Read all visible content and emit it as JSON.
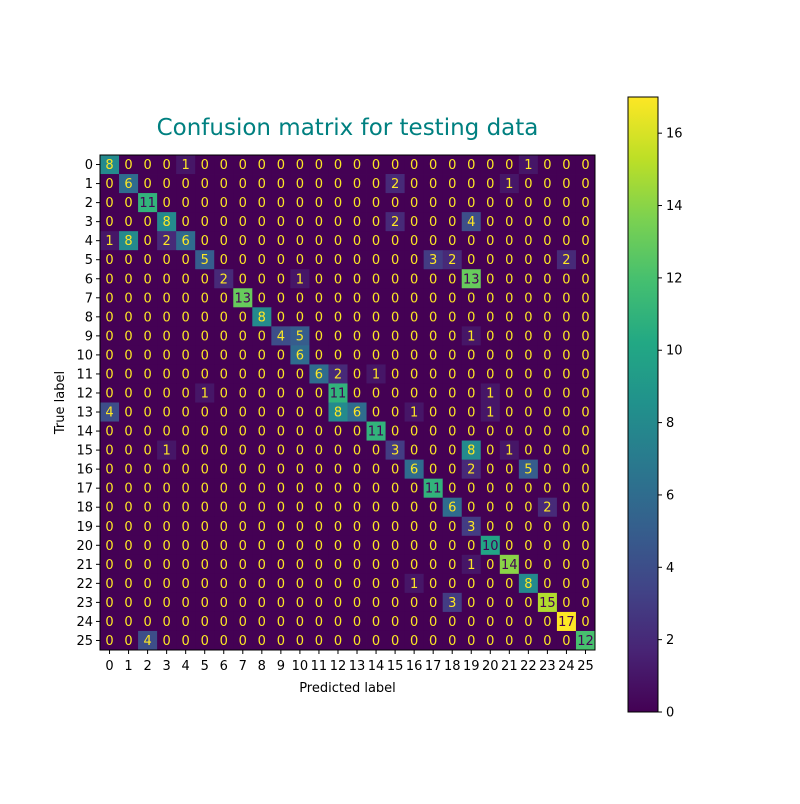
{
  "chart_data": {
    "type": "heatmap",
    "title": "Confusion matrix for testing data",
    "title_color": "#008080",
    "xlabel": "Predicted label",
    "ylabel": "True label",
    "x_labels": [
      "0",
      "1",
      "2",
      "3",
      "4",
      "5",
      "6",
      "7",
      "8",
      "9",
      "10",
      "11",
      "12",
      "13",
      "14",
      "15",
      "16",
      "17",
      "18",
      "19",
      "20",
      "21",
      "22",
      "23",
      "24",
      "25"
    ],
    "y_labels": [
      "0",
      "1",
      "2",
      "3",
      "4",
      "5",
      "6",
      "7",
      "8",
      "9",
      "10",
      "11",
      "12",
      "13",
      "14",
      "15",
      "16",
      "17",
      "18",
      "19",
      "20",
      "21",
      "22",
      "23",
      "24",
      "25"
    ],
    "matrix": [
      [
        8,
        0,
        0,
        0,
        1,
        0,
        0,
        0,
        0,
        0,
        0,
        0,
        0,
        0,
        0,
        0,
        0,
        0,
        0,
        0,
        0,
        0,
        1,
        0,
        0,
        0
      ],
      [
        0,
        6,
        0,
        0,
        0,
        0,
        0,
        0,
        0,
        0,
        0,
        0,
        0,
        0,
        0,
        2,
        0,
        0,
        0,
        0,
        0,
        1,
        0,
        0,
        0,
        0
      ],
      [
        0,
        0,
        11,
        0,
        0,
        0,
        0,
        0,
        0,
        0,
        0,
        0,
        0,
        0,
        0,
        0,
        0,
        0,
        0,
        0,
        0,
        0,
        0,
        0,
        0,
        0
      ],
      [
        0,
        0,
        0,
        8,
        0,
        0,
        0,
        0,
        0,
        0,
        0,
        0,
        0,
        0,
        0,
        2,
        0,
        0,
        0,
        4,
        0,
        0,
        0,
        0,
        0,
        0
      ],
      [
        1,
        8,
        0,
        2,
        6,
        0,
        0,
        0,
        0,
        0,
        0,
        0,
        0,
        0,
        0,
        0,
        0,
        0,
        0,
        0,
        0,
        0,
        0,
        0,
        0,
        0
      ],
      [
        0,
        0,
        0,
        0,
        0,
        5,
        0,
        0,
        0,
        0,
        0,
        0,
        0,
        0,
        0,
        0,
        0,
        3,
        2,
        0,
        0,
        0,
        0,
        0,
        2,
        0
      ],
      [
        0,
        0,
        0,
        0,
        0,
        0,
        2,
        0,
        0,
        0,
        1,
        0,
        0,
        0,
        0,
        0,
        0,
        0,
        0,
        13,
        0,
        0,
        0,
        0,
        0,
        0
      ],
      [
        0,
        0,
        0,
        0,
        0,
        0,
        0,
        13,
        0,
        0,
        0,
        0,
        0,
        0,
        0,
        0,
        0,
        0,
        0,
        0,
        0,
        0,
        0,
        0,
        0,
        0
      ],
      [
        0,
        0,
        0,
        0,
        0,
        0,
        0,
        0,
        8,
        0,
        0,
        0,
        0,
        0,
        0,
        0,
        0,
        0,
        0,
        0,
        0,
        0,
        0,
        0,
        0,
        0
      ],
      [
        0,
        0,
        0,
        0,
        0,
        0,
        0,
        0,
        0,
        4,
        5,
        0,
        0,
        0,
        0,
        0,
        0,
        0,
        0,
        1,
        0,
        0,
        0,
        0,
        0,
        0
      ],
      [
        0,
        0,
        0,
        0,
        0,
        0,
        0,
        0,
        0,
        0,
        6,
        0,
        0,
        0,
        0,
        0,
        0,
        0,
        0,
        0,
        0,
        0,
        0,
        0,
        0,
        0
      ],
      [
        0,
        0,
        0,
        0,
        0,
        0,
        0,
        0,
        0,
        0,
        0,
        6,
        2,
        0,
        1,
        0,
        0,
        0,
        0,
        0,
        0,
        0,
        0,
        0,
        0,
        0
      ],
      [
        0,
        0,
        0,
        0,
        0,
        1,
        0,
        0,
        0,
        0,
        0,
        0,
        11,
        0,
        0,
        0,
        0,
        0,
        0,
        0,
        1,
        0,
        0,
        0,
        0,
        0
      ],
      [
        4,
        0,
        0,
        0,
        0,
        0,
        0,
        0,
        0,
        0,
        0,
        0,
        8,
        6,
        0,
        0,
        1,
        0,
        0,
        0,
        1,
        0,
        0,
        0,
        0,
        0
      ],
      [
        0,
        0,
        0,
        0,
        0,
        0,
        0,
        0,
        0,
        0,
        0,
        0,
        0,
        0,
        11,
        0,
        0,
        0,
        0,
        0,
        0,
        0,
        0,
        0,
        0,
        0
      ],
      [
        0,
        0,
        0,
        1,
        0,
        0,
        0,
        0,
        0,
        0,
        0,
        0,
        0,
        0,
        0,
        3,
        0,
        0,
        0,
        8,
        0,
        1,
        0,
        0,
        0,
        0
      ],
      [
        0,
        0,
        0,
        0,
        0,
        0,
        0,
        0,
        0,
        0,
        0,
        0,
        0,
        0,
        0,
        0,
        6,
        0,
        0,
        2,
        0,
        0,
        5,
        0,
        0,
        0
      ],
      [
        0,
        0,
        0,
        0,
        0,
        0,
        0,
        0,
        0,
        0,
        0,
        0,
        0,
        0,
        0,
        0,
        0,
        11,
        0,
        0,
        0,
        0,
        0,
        0,
        0,
        0
      ],
      [
        0,
        0,
        0,
        0,
        0,
        0,
        0,
        0,
        0,
        0,
        0,
        0,
        0,
        0,
        0,
        0,
        0,
        0,
        6,
        0,
        0,
        0,
        0,
        2,
        0,
        0
      ],
      [
        0,
        0,
        0,
        0,
        0,
        0,
        0,
        0,
        0,
        0,
        0,
        0,
        0,
        0,
        0,
        0,
        0,
        0,
        0,
        3,
        0,
        0,
        0,
        0,
        0,
        0
      ],
      [
        0,
        0,
        0,
        0,
        0,
        0,
        0,
        0,
        0,
        0,
        0,
        0,
        0,
        0,
        0,
        0,
        0,
        0,
        0,
        0,
        10,
        0,
        0,
        0,
        0,
        0
      ],
      [
        0,
        0,
        0,
        0,
        0,
        0,
        0,
        0,
        0,
        0,
        0,
        0,
        0,
        0,
        0,
        0,
        0,
        0,
        0,
        1,
        0,
        14,
        0,
        0,
        0,
        0
      ],
      [
        0,
        0,
        0,
        0,
        0,
        0,
        0,
        0,
        0,
        0,
        0,
        0,
        0,
        0,
        0,
        0,
        1,
        0,
        0,
        0,
        0,
        0,
        8,
        0,
        0,
        0
      ],
      [
        0,
        0,
        0,
        0,
        0,
        0,
        0,
        0,
        0,
        0,
        0,
        0,
        0,
        0,
        0,
        0,
        0,
        0,
        3,
        0,
        0,
        0,
        0,
        15,
        0,
        0
      ],
      [
        0,
        0,
        0,
        0,
        0,
        0,
        0,
        0,
        0,
        0,
        0,
        0,
        0,
        0,
        0,
        0,
        0,
        0,
        0,
        0,
        0,
        0,
        0,
        0,
        17,
        0
      ],
      [
        0,
        0,
        4,
        0,
        0,
        0,
        0,
        0,
        0,
        0,
        0,
        0,
        0,
        0,
        0,
        0,
        0,
        0,
        0,
        0,
        0,
        0,
        0,
        0,
        0,
        12
      ]
    ],
    "colormap": "viridis",
    "vmin": 0,
    "vmax": 17,
    "colorbar_ticks": [
      "0",
      "2",
      "4",
      "6",
      "8",
      "10",
      "12",
      "14",
      "16"
    ],
    "grid": false
  }
}
